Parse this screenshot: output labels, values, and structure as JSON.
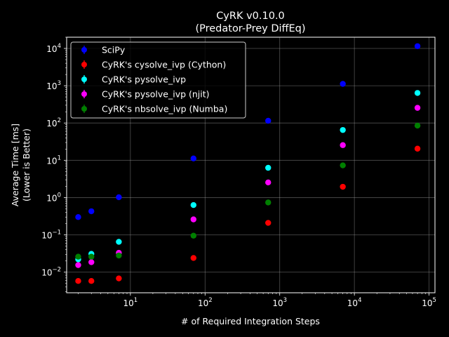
{
  "chart_data": {
    "type": "scatter",
    "title": "CyRK v0.10.0",
    "subtitle": "(Predator-Prey DiffEq)",
    "xlabel": "# of Required Integration Steps",
    "ylabel": [
      "Average Time [ms]",
      "(Lower is Better)"
    ],
    "xscale": "log",
    "yscale": "log",
    "xlim": [
      1.4,
      120000
    ],
    "ylim": [
      0.0028,
      20000
    ],
    "x_ticks": [
      {
        "exp": 1,
        "base": "10",
        "sup": "1"
      },
      {
        "exp": 2,
        "base": "10",
        "sup": "2"
      },
      {
        "exp": 3,
        "base": "10",
        "sup": "3"
      },
      {
        "exp": 4,
        "base": "10",
        "sup": "4"
      },
      {
        "exp": 5,
        "base": "10",
        "sup": "5"
      }
    ],
    "y_ticks": [
      {
        "exp": -2,
        "base": "10",
        "sup": "−2"
      },
      {
        "exp": -1,
        "base": "10",
        "sup": "−1"
      },
      {
        "exp": 0,
        "base": "10",
        "sup": "0"
      },
      {
        "exp": 1,
        "base": "10",
        "sup": "1"
      },
      {
        "exp": 2,
        "base": "10",
        "sup": "2"
      },
      {
        "exp": 3,
        "base": "10",
        "sup": "3"
      },
      {
        "exp": 4,
        "base": "10",
        "sup": "4"
      }
    ],
    "grid": true,
    "legend_position": "top-left",
    "x": [
      2,
      3,
      7,
      70,
      700,
      7000,
      70000
    ],
    "series": [
      {
        "name": "SciPy",
        "color": "#0000ff",
        "values": [
          0.3,
          0.43,
          1.02,
          11.2,
          115,
          1120,
          11500
        ]
      },
      {
        "name": "CyRK's cysolve_ivp (Cython)",
        "color": "#ff0000",
        "values": [
          0.0058,
          0.0058,
          0.0068,
          0.024,
          0.21,
          1.95,
          20.5
        ]
      },
      {
        "name": "CyRK's pysolve_ivp",
        "color": "#00ffff",
        "values": [
          0.022,
          0.031,
          0.065,
          0.63,
          6.3,
          65,
          640
        ]
      },
      {
        "name": "CyRK's pysolve_ivp (njit)",
        "color": "#ff00ff",
        "values": [
          0.0155,
          0.0185,
          0.033,
          0.26,
          2.55,
          25.5,
          255
        ]
      },
      {
        "name": "CyRK's nbsolve_ivp (Numba)",
        "color": "#007f00",
        "values": [
          0.026,
          0.026,
          0.028,
          0.095,
          0.74,
          7.3,
          85
        ]
      }
    ]
  }
}
